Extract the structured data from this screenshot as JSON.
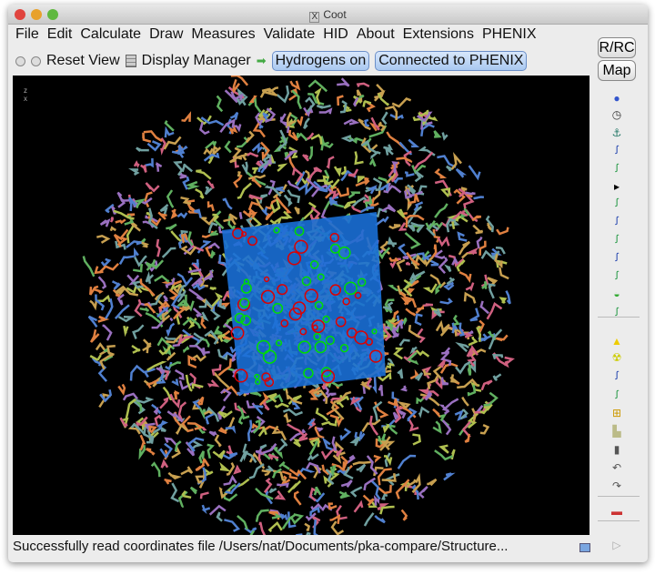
{
  "window": {
    "title": "Coot"
  },
  "menu": [
    "File",
    "Edit",
    "Calculate",
    "Draw",
    "Measures",
    "Validate",
    "HID",
    "About",
    "Extensions",
    "PHENIX"
  ],
  "toolbar": {
    "reset_view": "Reset View",
    "display_manager": "Display Manager",
    "hydrogens": "Hydrogens on",
    "phenix": "Connected to PHENIX"
  },
  "side_buttons": {
    "rrc": "R/RC",
    "map": "Map"
  },
  "side_icons": [
    "sphere-refine-icon",
    "clock-icon",
    "anchor-icon",
    "chain-green-icon",
    "chain-outline-icon",
    "more-arrow-icon",
    "green-residue-icon",
    "blue-residue-icon",
    "rotamer-icon",
    "rotamer-alt-icon",
    "flip-icon",
    "side-icon",
    "bond-icon",
    "hazard-small-icon",
    "radioactive-icon",
    "add-atom-icon",
    "add-residue-icon",
    "add-box-icon",
    "stamp-icon",
    "trash-icon",
    "undo-icon",
    "redo-icon",
    "flag-icon",
    "play-icon"
  ],
  "status": "Successfully read coordinates file /Users/nat/Documents/pka-compare/Structure...",
  "axes": {
    "z": "z",
    "x": "x"
  },
  "colors": {
    "background": "#000000",
    "map": "#1a6fd6",
    "difference_pos": "#00dd00",
    "difference_neg": "#dd0000"
  }
}
